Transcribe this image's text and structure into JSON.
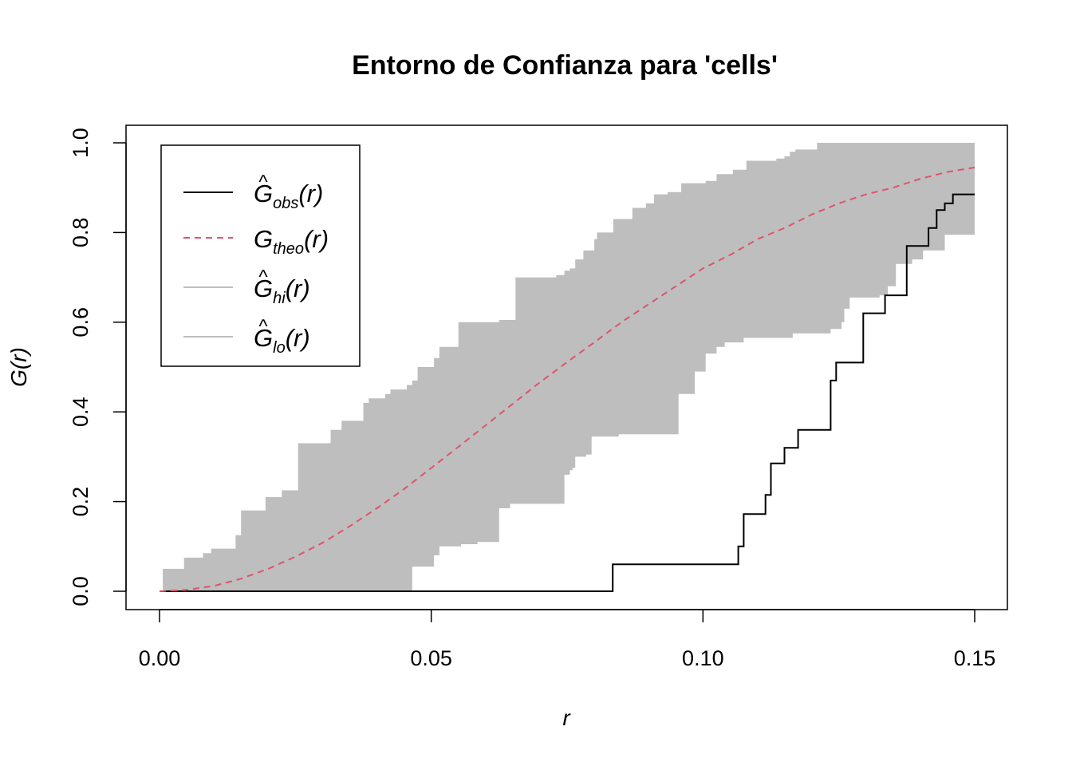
{
  "chart_data": {
    "type": "line",
    "title": "Entorno de Confianza para 'cells'",
    "xlabel": "r",
    "ylabel": "G(r)",
    "xlim": [
      0,
      0.15
    ],
    "ylim": [
      0,
      1.0
    ],
    "x_ticks": [
      0.0,
      0.05,
      0.1,
      0.15
    ],
    "x_tick_labels": [
      "0.00",
      "0.05",
      "0.10",
      "0.15"
    ],
    "y_ticks": [
      0.0,
      0.2,
      0.4,
      0.6,
      0.8,
      1.0
    ],
    "y_tick_labels": [
      "0.0",
      "0.2",
      "0.4",
      "0.6",
      "0.8",
      "1.0"
    ],
    "grid": false,
    "legend_position": "top-left",
    "colors": {
      "obs": "#000000",
      "theo": "#DF536B",
      "band": "#BEBEBE"
    },
    "legend": [
      {
        "key": "obs",
        "hat": "^",
        "main": "G",
        "sub": "obs",
        "arg": "(r)",
        "style": "solid",
        "color": "#000000"
      },
      {
        "key": "theo",
        "hat": "",
        "main": "G",
        "sub": "theo",
        "arg": "(r)",
        "style": "dashed",
        "color": "#DF536B"
      },
      {
        "key": "hi",
        "hat": "^",
        "main": "G",
        "sub": "hi",
        "arg": "(r)",
        "style": "solid",
        "color": "#BEBEBE"
      },
      {
        "key": "lo",
        "hat": "^",
        "main": "G",
        "sub": "lo",
        "arg": "(r)",
        "style": "solid",
        "color": "#BEBEBE"
      }
    ],
    "series": [
      {
        "name": "obs",
        "step": true,
        "points": [
          [
            0.0,
            0.0
          ],
          [
            0.0834,
            0.0
          ],
          [
            0.0834,
            0.06
          ],
          [
            0.1065,
            0.06
          ],
          [
            0.1065,
            0.1
          ],
          [
            0.1075,
            0.1
          ],
          [
            0.1075,
            0.172
          ],
          [
            0.1115,
            0.172
          ],
          [
            0.1115,
            0.215
          ],
          [
            0.1125,
            0.215
          ],
          [
            0.1125,
            0.285
          ],
          [
            0.115,
            0.285
          ],
          [
            0.115,
            0.32
          ],
          [
            0.1175,
            0.32
          ],
          [
            0.1175,
            0.36
          ],
          [
            0.1235,
            0.36
          ],
          [
            0.1235,
            0.47
          ],
          [
            0.1245,
            0.47
          ],
          [
            0.1245,
            0.51
          ],
          [
            0.1295,
            0.51
          ],
          [
            0.1295,
            0.62
          ],
          [
            0.1335,
            0.62
          ],
          [
            0.1335,
            0.66
          ],
          [
            0.1375,
            0.66
          ],
          [
            0.1375,
            0.77
          ],
          [
            0.1415,
            0.77
          ],
          [
            0.1415,
            0.81
          ],
          [
            0.143,
            0.81
          ],
          [
            0.143,
            0.85
          ],
          [
            0.1445,
            0.85
          ],
          [
            0.1445,
            0.865
          ],
          [
            0.146,
            0.865
          ],
          [
            0.146,
            0.885
          ],
          [
            0.15,
            0.885
          ]
        ]
      },
      {
        "name": "theo",
        "step": false,
        "points": [
          [
            0.0,
            0.0
          ],
          [
            0.005,
            0.003
          ],
          [
            0.01,
            0.012
          ],
          [
            0.015,
            0.028
          ],
          [
            0.02,
            0.05
          ],
          [
            0.025,
            0.077
          ],
          [
            0.03,
            0.108
          ],
          [
            0.035,
            0.145
          ],
          [
            0.04,
            0.185
          ],
          [
            0.045,
            0.228
          ],
          [
            0.05,
            0.275
          ],
          [
            0.055,
            0.322
          ],
          [
            0.06,
            0.37
          ],
          [
            0.065,
            0.418
          ],
          [
            0.07,
            0.466
          ],
          [
            0.075,
            0.511
          ],
          [
            0.08,
            0.555
          ],
          [
            0.085,
            0.6
          ],
          [
            0.09,
            0.64
          ],
          [
            0.095,
            0.68
          ],
          [
            0.1,
            0.72
          ],
          [
            0.105,
            0.75
          ],
          [
            0.11,
            0.785
          ],
          [
            0.115,
            0.81
          ],
          [
            0.12,
            0.84
          ],
          [
            0.125,
            0.865
          ],
          [
            0.13,
            0.885
          ],
          [
            0.135,
            0.9
          ],
          [
            0.14,
            0.92
          ],
          [
            0.145,
            0.935
          ],
          [
            0.15,
            0.945
          ]
        ]
      },
      {
        "name": "hi",
        "step": true,
        "points": [
          [
            0.0,
            0.0
          ],
          [
            0.0006,
            0.0
          ],
          [
            0.0006,
            0.05
          ],
          [
            0.0045,
            0.05
          ],
          [
            0.0045,
            0.075
          ],
          [
            0.008,
            0.075
          ],
          [
            0.008,
            0.085
          ],
          [
            0.0095,
            0.085
          ],
          [
            0.0095,
            0.095
          ],
          [
            0.014,
            0.095
          ],
          [
            0.014,
            0.125
          ],
          [
            0.015,
            0.125
          ],
          [
            0.015,
            0.18
          ],
          [
            0.0195,
            0.18
          ],
          [
            0.0195,
            0.21
          ],
          [
            0.0225,
            0.21
          ],
          [
            0.0225,
            0.225
          ],
          [
            0.0255,
            0.225
          ],
          [
            0.0255,
            0.33
          ],
          [
            0.0315,
            0.33
          ],
          [
            0.0315,
            0.36
          ],
          [
            0.0335,
            0.36
          ],
          [
            0.0335,
            0.38
          ],
          [
            0.0375,
            0.38
          ],
          [
            0.0375,
            0.42
          ],
          [
            0.0385,
            0.42
          ],
          [
            0.0385,
            0.43
          ],
          [
            0.0415,
            0.43
          ],
          [
            0.0415,
            0.44
          ],
          [
            0.0425,
            0.44
          ],
          [
            0.0425,
            0.45
          ],
          [
            0.0455,
            0.45
          ],
          [
            0.0455,
            0.46
          ],
          [
            0.0465,
            0.46
          ],
          [
            0.0465,
            0.47
          ],
          [
            0.0475,
            0.47
          ],
          [
            0.0475,
            0.5
          ],
          [
            0.0505,
            0.5
          ],
          [
            0.0505,
            0.52
          ],
          [
            0.0515,
            0.52
          ],
          [
            0.0515,
            0.545
          ],
          [
            0.055,
            0.545
          ],
          [
            0.055,
            0.6
          ],
          [
            0.0625,
            0.6
          ],
          [
            0.0625,
            0.605
          ],
          [
            0.0655,
            0.605
          ],
          [
            0.0655,
            0.7
          ],
          [
            0.073,
            0.7
          ],
          [
            0.073,
            0.705
          ],
          [
            0.0745,
            0.705
          ],
          [
            0.0745,
            0.715
          ],
          [
            0.0755,
            0.715
          ],
          [
            0.0755,
            0.72
          ],
          [
            0.0765,
            0.72
          ],
          [
            0.0765,
            0.74
          ],
          [
            0.078,
            0.74
          ],
          [
            0.078,
            0.76
          ],
          [
            0.08,
            0.76
          ],
          [
            0.08,
            0.785
          ],
          [
            0.0805,
            0.785
          ],
          [
            0.0805,
            0.8
          ],
          [
            0.0835,
            0.8
          ],
          [
            0.0835,
            0.83
          ],
          [
            0.087,
            0.83
          ],
          [
            0.087,
            0.855
          ],
          [
            0.0895,
            0.855
          ],
          [
            0.0895,
            0.865
          ],
          [
            0.091,
            0.865
          ],
          [
            0.091,
            0.885
          ],
          [
            0.0935,
            0.885
          ],
          [
            0.0935,
            0.89
          ],
          [
            0.096,
            0.89
          ],
          [
            0.096,
            0.91
          ],
          [
            0.1005,
            0.91
          ],
          [
            0.1005,
            0.915
          ],
          [
            0.1025,
            0.915
          ],
          [
            0.1025,
            0.93
          ],
          [
            0.1055,
            0.93
          ],
          [
            0.1055,
            0.94
          ],
          [
            0.108,
            0.94
          ],
          [
            0.108,
            0.96
          ],
          [
            0.1135,
            0.96
          ],
          [
            0.1135,
            0.965
          ],
          [
            0.115,
            0.965
          ],
          [
            0.115,
            0.97
          ],
          [
            0.116,
            0.97
          ],
          [
            0.116,
            0.98
          ],
          [
            0.117,
            0.98
          ],
          [
            0.117,
            0.985
          ],
          [
            0.121,
            0.985
          ],
          [
            0.121,
            1.0
          ],
          [
            0.15,
            1.0
          ]
        ]
      },
      {
        "name": "lo",
        "step": true,
        "points": [
          [
            0.0,
            0.0
          ],
          [
            0.0465,
            0.0
          ],
          [
            0.0465,
            0.055
          ],
          [
            0.0505,
            0.055
          ],
          [
            0.0505,
            0.08
          ],
          [
            0.0515,
            0.08
          ],
          [
            0.0515,
            0.1
          ],
          [
            0.0555,
            0.1
          ],
          [
            0.0555,
            0.105
          ],
          [
            0.0585,
            0.105
          ],
          [
            0.0585,
            0.11
          ],
          [
            0.0625,
            0.11
          ],
          [
            0.0625,
            0.185
          ],
          [
            0.0645,
            0.185
          ],
          [
            0.0645,
            0.195
          ],
          [
            0.0745,
            0.195
          ],
          [
            0.0745,
            0.26
          ],
          [
            0.0755,
            0.26
          ],
          [
            0.0755,
            0.27
          ],
          [
            0.076,
            0.27
          ],
          [
            0.076,
            0.275
          ],
          [
            0.0765,
            0.275
          ],
          [
            0.0765,
            0.3
          ],
          [
            0.0785,
            0.3
          ],
          [
            0.0785,
            0.305
          ],
          [
            0.0795,
            0.305
          ],
          [
            0.0795,
            0.345
          ],
          [
            0.0845,
            0.345
          ],
          [
            0.0845,
            0.35
          ],
          [
            0.0955,
            0.35
          ],
          [
            0.0955,
            0.44
          ],
          [
            0.0985,
            0.44
          ],
          [
            0.0985,
            0.49
          ],
          [
            0.1005,
            0.49
          ],
          [
            0.1005,
            0.53
          ],
          [
            0.1025,
            0.53
          ],
          [
            0.1025,
            0.545
          ],
          [
            0.104,
            0.545
          ],
          [
            0.104,
            0.555
          ],
          [
            0.1075,
            0.555
          ],
          [
            0.1075,
            0.565
          ],
          [
            0.1165,
            0.565
          ],
          [
            0.1165,
            0.575
          ],
          [
            0.1235,
            0.575
          ],
          [
            0.1235,
            0.585
          ],
          [
            0.1255,
            0.585
          ],
          [
            0.1255,
            0.6
          ],
          [
            0.126,
            0.6
          ],
          [
            0.126,
            0.63
          ],
          [
            0.127,
            0.63
          ],
          [
            0.127,
            0.655
          ],
          [
            0.1325,
            0.655
          ],
          [
            0.1325,
            0.66
          ],
          [
            0.134,
            0.66
          ],
          [
            0.134,
            0.68
          ],
          [
            0.1355,
            0.68
          ],
          [
            0.1355,
            0.73
          ],
          [
            0.1385,
            0.73
          ],
          [
            0.1385,
            0.74
          ],
          [
            0.1405,
            0.74
          ],
          [
            0.1405,
            0.76
          ],
          [
            0.1445,
            0.76
          ],
          [
            0.1445,
            0.795
          ],
          [
            0.15,
            0.795
          ]
        ]
      }
    ]
  }
}
